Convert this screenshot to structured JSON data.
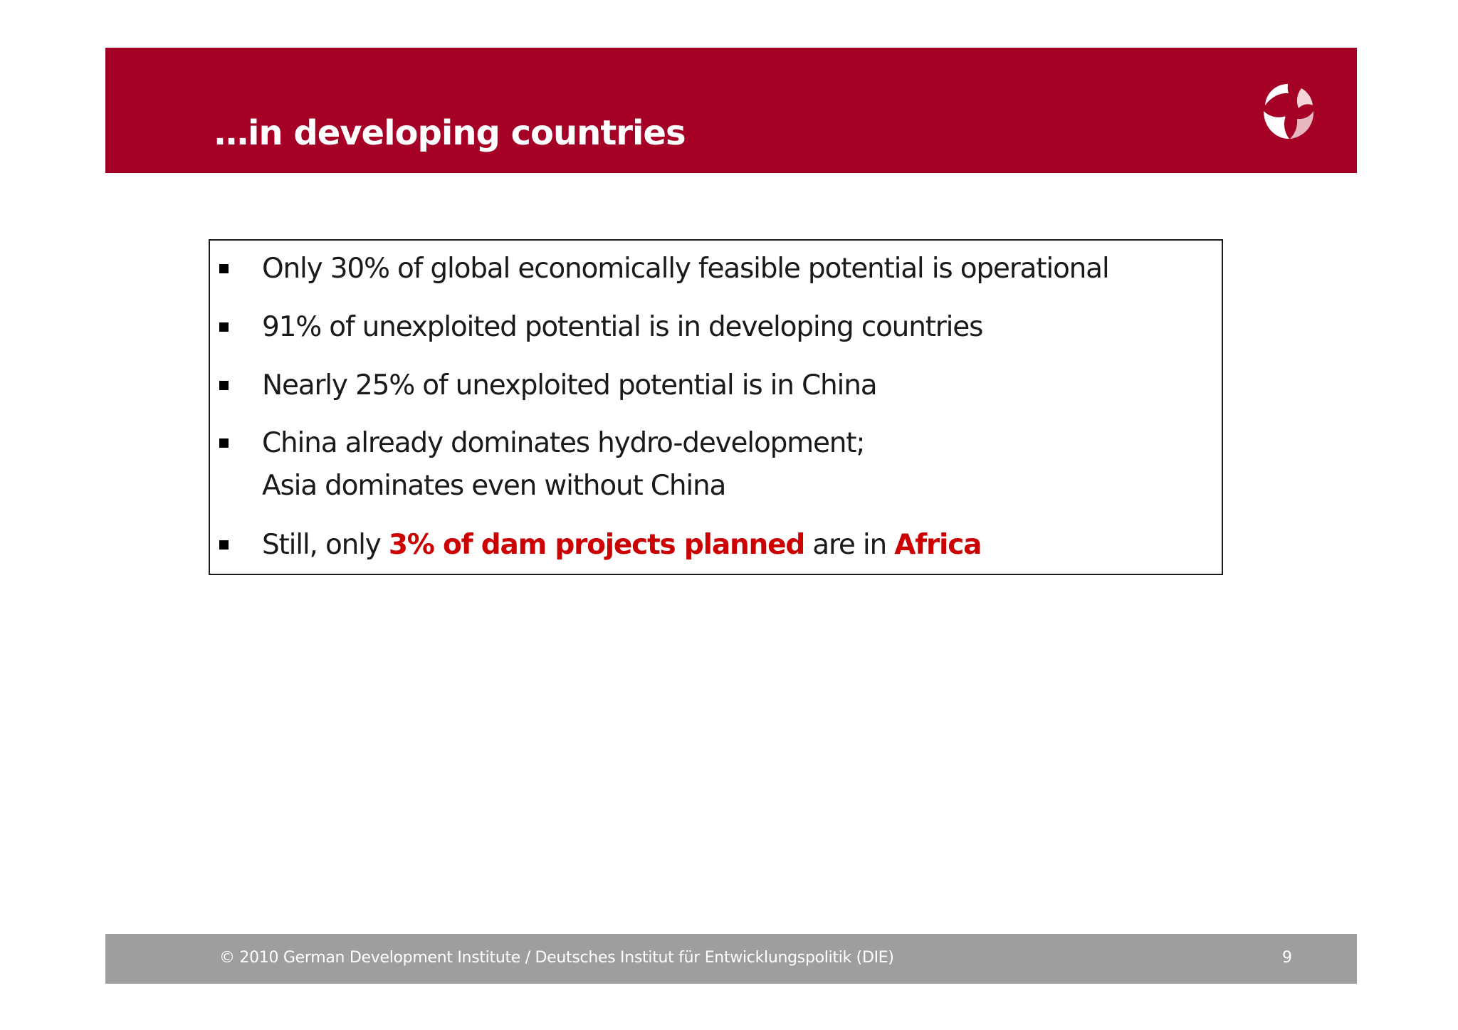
{
  "header": {
    "title": "…in developing countries"
  },
  "colors": {
    "header_bg": "#a50026",
    "highlight": "#cc0000",
    "footer_bg": "#9e9e9e"
  },
  "logo": {
    "icon": "die-logo-icon"
  },
  "bullets": [
    {
      "text": "Only 30% of global economically feasible potential is operational"
    },
    {
      "text": "91% of unexploited potential is in developing countries"
    },
    {
      "text": "Nearly 25% of unexploited  potential is in China"
    },
    {
      "line1": "China already dominates hydro-development;",
      "line2": "Asia dominates even without China"
    },
    {
      "part1": "Still, only ",
      "part2": "3% of dam projects planned",
      "part3": " are in ",
      "part4": "Africa"
    }
  ],
  "footer": {
    "copyright": "© 2010  German Development Institute / Deutsches Institut für Entwicklungspolitik (DIE)",
    "page_number": "9"
  }
}
